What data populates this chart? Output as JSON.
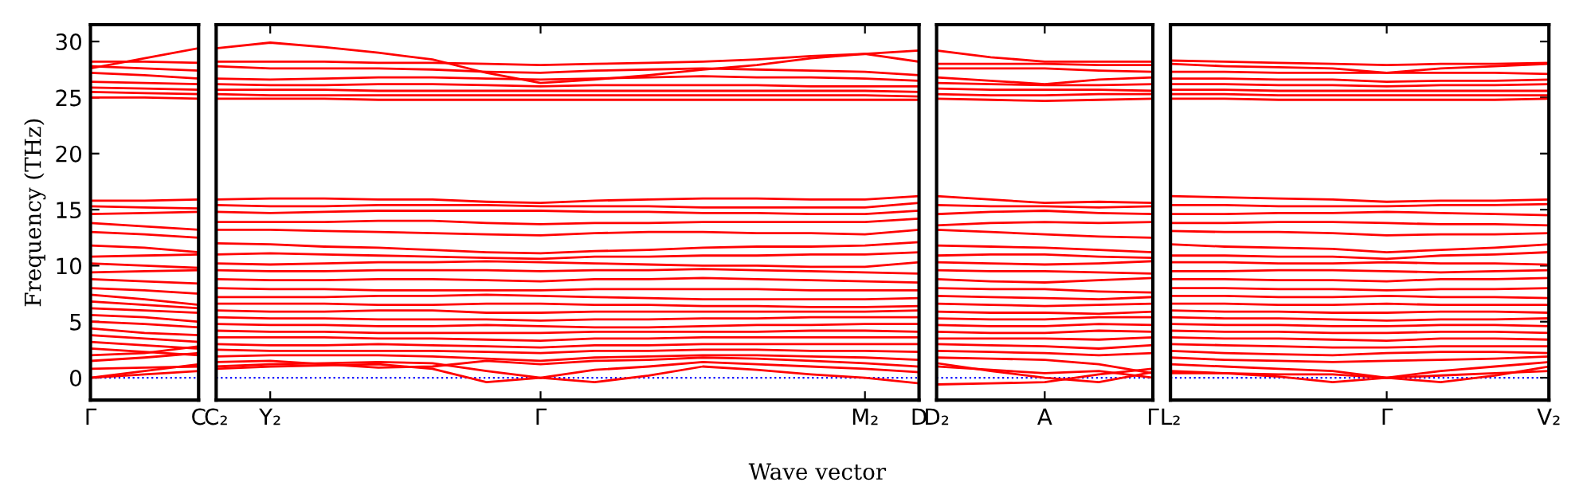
{
  "chart_data": [
    {
      "type": "line",
      "ylabel": "Frequency (THz)",
      "categories": [
        "Γ",
        null,
        "C"
      ],
      "ylim": [
        -2,
        31.5
      ],
      "yticks": [
        0,
        5,
        10,
        15,
        20,
        25,
        30
      ],
      "ref_lines": [
        {
          "axis": "y",
          "value": 0,
          "color": "#0000ff",
          "line_style": "dotted"
        }
      ],
      "series": [
        {
          "color": "#ff0000",
          "values": [
            27.6,
            28.5,
            29.4
          ]
        },
        {
          "color": "#ff0000",
          "values": [
            28.2,
            28.2,
            28.1
          ]
        },
        {
          "color": "#ff0000",
          "values": [
            27.8,
            27.6,
            27.4
          ]
        },
        {
          "color": "#ff0000",
          "values": [
            27.2,
            27.0,
            26.7
          ]
        },
        {
          "color": "#ff0000",
          "values": [
            26.4,
            26.3,
            26.2
          ]
        },
        {
          "color": "#ff0000",
          "values": [
            25.9,
            25.8,
            25.7
          ]
        },
        {
          "color": "#ff0000",
          "values": [
            25.5,
            25.4,
            25.3
          ]
        },
        {
          "color": "#ff0000",
          "values": [
            25.0,
            25.0,
            24.9
          ]
        },
        {
          "color": "#ff0000",
          "values": [
            15.8,
            15.8,
            15.9
          ]
        },
        {
          "color": "#ff0000",
          "values": [
            15.3,
            15.2,
            15.1
          ]
        },
        {
          "color": "#ff0000",
          "values": [
            14.6,
            14.7,
            14.8
          ]
        },
        {
          "color": "#ff0000",
          "values": [
            13.8,
            13.5,
            13.2
          ]
        },
        {
          "color": "#ff0000",
          "values": [
            13.0,
            12.8,
            12.5
          ]
        },
        {
          "color": "#ff0000",
          "values": [
            11.8,
            11.6,
            11.2
          ]
        },
        {
          "color": "#ff0000",
          "values": [
            10.8,
            10.9,
            11.0
          ]
        },
        {
          "color": "#ff0000",
          "values": [
            10.2,
            10.0,
            9.8
          ]
        },
        {
          "color": "#ff0000",
          "values": [
            9.4,
            9.5,
            9.6
          ]
        },
        {
          "color": "#ff0000",
          "values": [
            8.8,
            8.6,
            8.4
          ]
        },
        {
          "color": "#ff0000",
          "values": [
            8.0,
            7.8,
            7.5
          ]
        },
        {
          "color": "#ff0000",
          "values": [
            7.4,
            7.0,
            6.5
          ]
        },
        {
          "color": "#ff0000",
          "values": [
            6.8,
            6.5,
            6.2
          ]
        },
        {
          "color": "#ff0000",
          "values": [
            6.2,
            6.0,
            5.8
          ]
        },
        {
          "color": "#ff0000",
          "values": [
            5.6,
            5.4,
            5.0
          ]
        },
        {
          "color": "#ff0000",
          "values": [
            5.0,
            4.8,
            4.5
          ]
        },
        {
          "color": "#ff0000",
          "values": [
            4.4,
            4.0,
            3.8
          ]
        },
        {
          "color": "#ff0000",
          "values": [
            3.8,
            3.5,
            3.2
          ]
        },
        {
          "color": "#ff0000",
          "values": [
            3.2,
            2.9,
            2.6
          ]
        },
        {
          "color": "#ff0000",
          "values": [
            2.6,
            2.3,
            2.0
          ]
        },
        {
          "color": "#ff0000",
          "values": [
            2.0,
            2.2,
            2.8
          ]
        },
        {
          "color": "#ff0000",
          "values": [
            1.5,
            1.8,
            2.2
          ]
        },
        {
          "color": "#ff0000",
          "values": [
            0,
            0.6,
            1.2
          ]
        },
        {
          "color": "#ff0000",
          "values": [
            0,
            0.3,
            0.6
          ]
        },
        {
          "color": "#ff0000",
          "values": [
            0.8,
            0.9,
            1.0
          ]
        }
      ]
    },
    {
      "type": "line",
      "xlabel": "Wave vector",
      "tick_labels": "x",
      "categories": [
        "C₂",
        "Y₂",
        null,
        null,
        null,
        null,
        "Γ",
        null,
        null,
        null,
        null,
        null,
        "M₂",
        "D"
      ],
      "ylim": [
        -2,
        31.5
      ],
      "ref_lines": [
        {
          "axis": "y",
          "value": 0,
          "color": "#0000ff",
          "line_style": "dotted"
        }
      ],
      "series": [
        {
          "color": "#ff0000",
          "values": [
            29.4,
            29.9,
            29.5,
            29.0,
            28.4,
            27.2,
            26.3,
            26.6,
            27.0,
            27.5,
            27.9,
            28.5,
            28.9,
            29.2
          ]
        },
        {
          "color": "#ff0000",
          "values": [
            28.2,
            28.2,
            28.2,
            28.1,
            28.1,
            28.0,
            27.9,
            28.0,
            28.1,
            28.2,
            28.4,
            28.7,
            28.9,
            28.2
          ]
        },
        {
          "color": "#ff0000",
          "values": [
            27.8,
            27.6,
            27.6,
            27.6,
            27.5,
            27.3,
            27.2,
            27.4,
            27.5,
            27.6,
            27.5,
            27.4,
            27.3,
            27.0
          ]
        },
        {
          "color": "#ff0000",
          "values": [
            26.7,
            26.6,
            26.7,
            26.8,
            26.8,
            26.7,
            26.6,
            26.7,
            26.8,
            26.9,
            26.8,
            26.8,
            26.7,
            26.5
          ]
        },
        {
          "color": "#ff0000",
          "values": [
            26.2,
            26.1,
            26.1,
            26.2,
            26.2,
            26.1,
            26.0,
            26.1,
            26.1,
            26.1,
            26.1,
            26.0,
            26.0,
            26.0
          ]
        },
        {
          "color": "#ff0000",
          "values": [
            25.7,
            25.7,
            25.7,
            25.6,
            25.6,
            25.6,
            25.6,
            25.6,
            25.6,
            25.6,
            25.6,
            25.6,
            25.6,
            25.5
          ]
        },
        {
          "color": "#ff0000",
          "values": [
            25.3,
            25.2,
            25.2,
            25.2,
            25.2,
            25.2,
            25.2,
            25.2,
            25.2,
            25.2,
            25.2,
            25.2,
            25.2,
            25.1
          ]
        },
        {
          "color": "#ff0000",
          "values": [
            24.9,
            24.9,
            24.9,
            24.8,
            24.8,
            24.8,
            24.8,
            24.8,
            24.8,
            24.8,
            24.8,
            24.8,
            24.8,
            24.8
          ]
        },
        {
          "color": "#ff0000",
          "values": [
            15.9,
            16.0,
            16.0,
            15.9,
            15.9,
            15.7,
            15.6,
            15.8,
            15.9,
            16.0,
            16.0,
            15.9,
            15.9,
            16.2
          ]
        },
        {
          "color": "#ff0000",
          "values": [
            15.4,
            15.3,
            15.3,
            15.4,
            15.4,
            15.4,
            15.3,
            15.3,
            15.3,
            15.2,
            15.2,
            15.2,
            15.2,
            15.6
          ]
        },
        {
          "color": "#ff0000",
          "values": [
            14.8,
            14.7,
            14.8,
            14.9,
            14.9,
            14.9,
            14.9,
            14.8,
            14.8,
            14.7,
            14.7,
            14.6,
            14.6,
            14.9
          ]
        },
        {
          "color": "#ff0000",
          "values": [
            13.9,
            13.9,
            13.9,
            14.0,
            14.0,
            13.8,
            13.7,
            13.8,
            13.8,
            13.9,
            13.9,
            13.9,
            13.9,
            14.2
          ]
        },
        {
          "color": "#ff0000",
          "values": [
            13.2,
            13.2,
            13.1,
            13.0,
            12.9,
            12.8,
            12.7,
            12.9,
            13.0,
            13.0,
            12.9,
            12.9,
            12.8,
            13.2
          ]
        },
        {
          "color": "#ff0000",
          "values": [
            12.0,
            11.9,
            11.7,
            11.6,
            11.4,
            11.2,
            11.1,
            11.3,
            11.4,
            11.6,
            11.7,
            11.7,
            11.8,
            12.1
          ]
        },
        {
          "color": "#ff0000",
          "values": [
            11.0,
            11.1,
            11.0,
            10.9,
            10.8,
            10.7,
            10.6,
            10.8,
            10.8,
            10.9,
            10.9,
            11.0,
            11.0,
            11.2
          ]
        },
        {
          "color": "#ff0000",
          "values": [
            10.2,
            10.1,
            10.2,
            10.3,
            10.3,
            10.4,
            10.3,
            10.2,
            10.1,
            10.0,
            10.0,
            9.9,
            9.9,
            10.3
          ]
        },
        {
          "color": "#ff0000",
          "values": [
            9.6,
            9.5,
            9.5,
            9.6,
            9.6,
            9.6,
            9.5,
            9.6,
            9.6,
            9.7,
            9.6,
            9.5,
            9.4,
            9.3
          ]
        },
        {
          "color": "#ff0000",
          "values": [
            8.8,
            8.7,
            8.7,
            8.8,
            8.8,
            8.7,
            8.6,
            8.8,
            8.8,
            8.9,
            8.8,
            8.7,
            8.6,
            8.5
          ]
        },
        {
          "color": "#ff0000",
          "values": [
            8.0,
            7.9,
            7.9,
            7.8,
            7.8,
            7.8,
            7.8,
            7.9,
            7.9,
            7.9,
            7.9,
            7.8,
            7.8,
            7.8
          ]
        },
        {
          "color": "#ff0000",
          "values": [
            7.2,
            7.2,
            7.2,
            7.3,
            7.3,
            7.4,
            7.3,
            7.2,
            7.1,
            7.0,
            7.0,
            7.0,
            7.0,
            7.1
          ]
        },
        {
          "color": "#ff0000",
          "values": [
            6.6,
            6.6,
            6.6,
            6.5,
            6.5,
            6.6,
            6.6,
            6.5,
            6.5,
            6.4,
            6.4,
            6.3,
            6.3,
            6.4
          ]
        },
        {
          "color": "#ff0000",
          "values": [
            6.0,
            5.9,
            5.9,
            6.0,
            6.0,
            5.8,
            5.8,
            5.9,
            5.9,
            5.9,
            5.9,
            5.9,
            5.9,
            6.0
          ]
        },
        {
          "color": "#ff0000",
          "values": [
            5.4,
            5.3,
            5.3,
            5.2,
            5.2,
            5.2,
            5.1,
            5.2,
            5.2,
            5.3,
            5.3,
            5.4,
            5.4,
            5.4
          ]
        },
        {
          "color": "#ff0000",
          "values": [
            4.8,
            4.7,
            4.7,
            4.6,
            4.6,
            4.7,
            4.6,
            4.5,
            4.5,
            4.6,
            4.7,
            4.7,
            4.8,
            4.8
          ]
        },
        {
          "color": "#ff0000",
          "values": [
            4.2,
            4.1,
            4.1,
            4.0,
            4.0,
            4.0,
            4.0,
            4.1,
            4.1,
            4.1,
            4.1,
            4.2,
            4.2,
            4.1
          ]
        },
        {
          "color": "#ff0000",
          "values": [
            3.6,
            3.6,
            3.6,
            3.5,
            3.5,
            3.4,
            3.3,
            3.5,
            3.5,
            3.6,
            3.6,
            3.6,
            3.6,
            3.6
          ]
        },
        {
          "color": "#ff0000",
          "values": [
            3.0,
            2.9,
            2.9,
            3.0,
            2.9,
            2.8,
            2.7,
            2.9,
            2.9,
            3.0,
            3.0,
            3.0,
            3.0,
            3.0
          ]
        },
        {
          "color": "#ff0000",
          "values": [
            2.5,
            2.4,
            2.4,
            2.4,
            2.4,
            2.3,
            2.2,
            2.4,
            2.4,
            2.5,
            2.5,
            2.4,
            2.4,
            2.3
          ]
        },
        {
          "color": "#ff0000",
          "values": [
            1.9,
            2.0,
            2.0,
            2.0,
            1.9,
            1.7,
            1.5,
            1.8,
            1.9,
            2.0,
            2.0,
            1.9,
            1.8,
            1.6
          ]
        },
        {
          "color": "#ff0000",
          "values": [
            1.4,
            1.5,
            1.2,
            0.9,
            1.0,
            1.5,
            1.2,
            1.5,
            1.6,
            1.8,
            1.7,
            1.5,
            1.3,
            1.0
          ]
        },
        {
          "color": "#ff0000",
          "values": [
            1.0,
            1.2,
            1.3,
            1.4,
            1.3,
            0.6,
            0.0,
            0.7,
            1.0,
            1.4,
            1.2,
            1.0,
            0.8,
            0.5
          ]
        },
        {
          "color": "#ff0000",
          "values": [
            0.8,
            1.0,
            1.1,
            1.2,
            0.8,
            -0.4,
            0.0,
            -0.4,
            0.2,
            1.0,
            0.7,
            0.3,
            0.0,
            -0.5
          ]
        }
      ]
    },
    {
      "type": "line",
      "tick_labels": "x",
      "categories": [
        "D₂",
        null,
        "A",
        null,
        "Γ"
      ],
      "ylim": [
        -2,
        31.5
      ],
      "ref_lines": [
        {
          "axis": "y",
          "value": 0,
          "color": "#0000ff",
          "line_style": "dotted"
        }
      ],
      "series": [
        {
          "color": "#ff0000",
          "values": [
            29.2,
            28.6,
            28.2,
            28.2,
            28.2
          ]
        },
        {
          "color": "#ff0000",
          "values": [
            28.0,
            28.0,
            28.0,
            27.9,
            27.9
          ]
        },
        {
          "color": "#ff0000",
          "values": [
            27.6,
            27.6,
            27.6,
            27.4,
            27.3
          ]
        },
        {
          "color": "#ff0000",
          "values": [
            26.8,
            26.5,
            26.2,
            26.6,
            26.8
          ]
        },
        {
          "color": "#ff0000",
          "values": [
            26.3,
            26.2,
            26.1,
            26.1,
            26.2
          ]
        },
        {
          "color": "#ff0000",
          "values": [
            25.8,
            25.7,
            25.7,
            25.7,
            25.6
          ]
        },
        {
          "color": "#ff0000",
          "values": [
            25.3,
            25.2,
            25.2,
            25.3,
            25.3
          ]
        },
        {
          "color": "#ff0000",
          "values": [
            24.9,
            24.8,
            24.7,
            24.8,
            24.9
          ]
        },
        {
          "color": "#ff0000",
          "values": [
            16.2,
            15.9,
            15.6,
            15.7,
            15.6
          ]
        },
        {
          "color": "#ff0000",
          "values": [
            15.4,
            15.3,
            15.3,
            15.2,
            15.3
          ]
        },
        {
          "color": "#ff0000",
          "values": [
            14.6,
            14.8,
            14.9,
            14.7,
            14.6
          ]
        },
        {
          "color": "#ff0000",
          "values": [
            13.6,
            13.8,
            13.9,
            13.8,
            13.9
          ]
        },
        {
          "color": "#ff0000",
          "values": [
            13.2,
            13.0,
            12.8,
            12.6,
            12.5
          ]
        },
        {
          "color": "#ff0000",
          "values": [
            11.8,
            11.7,
            11.6,
            11.4,
            11.2
          ]
        },
        {
          "color": "#ff0000",
          "values": [
            10.9,
            11.0,
            11.0,
            10.8,
            10.7
          ]
        },
        {
          "color": "#ff0000",
          "values": [
            10.3,
            10.2,
            10.1,
            10.2,
            10.4
          ]
        },
        {
          "color": "#ff0000",
          "values": [
            9.6,
            9.5,
            9.5,
            9.4,
            9.3
          ]
        },
        {
          "color": "#ff0000",
          "values": [
            8.8,
            8.6,
            8.5,
            8.7,
            8.9
          ]
        },
        {
          "color": "#ff0000",
          "values": [
            8.0,
            7.9,
            7.9,
            7.7,
            7.6
          ]
        },
        {
          "color": "#ff0000",
          "values": [
            7.3,
            7.2,
            7.1,
            7.0,
            7.2
          ]
        },
        {
          "color": "#ff0000",
          "values": [
            6.6,
            6.5,
            6.4,
            6.5,
            6.6
          ]
        },
        {
          "color": "#ff0000",
          "values": [
            5.9,
            5.8,
            5.8,
            5.7,
            5.9
          ]
        },
        {
          "color": "#ff0000",
          "values": [
            5.3,
            5.2,
            5.2,
            5.4,
            5.4
          ]
        },
        {
          "color": "#ff0000",
          "values": [
            4.7,
            4.6,
            4.6,
            4.8,
            4.7
          ]
        },
        {
          "color": "#ff0000",
          "values": [
            4.1,
            4.0,
            4.0,
            4.2,
            4.1
          ]
        },
        {
          "color": "#ff0000",
          "values": [
            3.5,
            3.5,
            3.5,
            3.4,
            3.6
          ]
        },
        {
          "color": "#ff0000",
          "values": [
            3.0,
            2.9,
            2.8,
            2.6,
            2.9
          ]
        },
        {
          "color": "#ff0000",
          "values": [
            2.4,
            2.3,
            2.2,
            2.0,
            2.2
          ]
        },
        {
          "color": "#ff0000",
          "values": [
            1.8,
            1.7,
            1.6,
            1.2,
            0.4
          ]
        },
        {
          "color": "#ff0000",
          "values": [
            1.0,
            0.7,
            0.4,
            0.6,
            0.0
          ]
        },
        {
          "color": "#ff0000",
          "values": [
            -0.6,
            -0.5,
            -0.4,
            0.3,
            0.8
          ]
        },
        {
          "color": "#ff0000",
          "values": [
            1.3,
            0.6,
            0.0,
            -0.4,
            0.5
          ]
        }
      ]
    },
    {
      "type": "line",
      "tick_labels": "x",
      "categories": [
        "L₂",
        null,
        null,
        null,
        "Γ",
        null,
        null,
        "V₂"
      ],
      "ylim": [
        -2,
        31.5
      ],
      "ref_lines": [
        {
          "axis": "y",
          "value": 0,
          "color": "#0000ff",
          "line_style": "dotted"
        }
      ],
      "series": [
        {
          "color": "#ff0000",
          "values": [
            28.3,
            28.2,
            28.1,
            28.0,
            27.9,
            28.0,
            28.0,
            28.1
          ]
        },
        {
          "color": "#ff0000",
          "values": [
            28.0,
            27.8,
            27.7,
            27.6,
            27.2,
            27.6,
            27.8,
            28.0
          ]
        },
        {
          "color": "#ff0000",
          "values": [
            27.3,
            27.3,
            27.2,
            27.2,
            27.2,
            27.2,
            27.2,
            27.1
          ]
        },
        {
          "color": "#ff0000",
          "values": [
            26.7,
            26.7,
            26.6,
            26.6,
            26.4,
            26.5,
            26.5,
            26.6
          ]
        },
        {
          "color": "#ff0000",
          "values": [
            26.2,
            26.2,
            26.1,
            26.1,
            26.0,
            26.1,
            26.1,
            26.2
          ]
        },
        {
          "color": "#ff0000",
          "values": [
            25.7,
            25.7,
            25.6,
            25.6,
            25.6,
            25.6,
            25.6,
            25.6
          ]
        },
        {
          "color": "#ff0000",
          "values": [
            25.3,
            25.3,
            25.2,
            25.2,
            25.2,
            25.2,
            25.2,
            25.2
          ]
        },
        {
          "color": "#ff0000",
          "values": [
            24.9,
            24.9,
            24.8,
            24.8,
            24.8,
            24.8,
            24.8,
            24.9
          ]
        },
        {
          "color": "#ff0000",
          "values": [
            16.2,
            16.1,
            16.0,
            15.9,
            15.7,
            15.8,
            15.8,
            15.9
          ]
        },
        {
          "color": "#ff0000",
          "values": [
            15.4,
            15.4,
            15.3,
            15.3,
            15.3,
            15.4,
            15.4,
            15.5
          ]
        },
        {
          "color": "#ff0000",
          "values": [
            14.6,
            14.6,
            14.7,
            14.7,
            14.8,
            14.7,
            14.6,
            14.5
          ]
        },
        {
          "color": "#ff0000",
          "values": [
            13.8,
            13.8,
            13.9,
            13.9,
            13.8,
            13.7,
            13.7,
            13.6
          ]
        },
        {
          "color": "#ff0000",
          "values": [
            13.1,
            13.0,
            13.0,
            12.9,
            12.7,
            12.8,
            12.8,
            12.9
          ]
        },
        {
          "color": "#ff0000",
          "values": [
            11.9,
            11.7,
            11.6,
            11.5,
            11.2,
            11.4,
            11.6,
            11.9
          ]
        },
        {
          "color": "#ff0000",
          "values": [
            10.9,
            10.9,
            10.8,
            10.8,
            10.6,
            10.9,
            11.0,
            11.2
          ]
        },
        {
          "color": "#ff0000",
          "values": [
            10.3,
            10.3,
            10.2,
            10.2,
            10.3,
            10.2,
            10.2,
            10.1
          ]
        },
        {
          "color": "#ff0000",
          "values": [
            9.5,
            9.5,
            9.6,
            9.6,
            9.5,
            9.4,
            9.5,
            9.6
          ]
        },
        {
          "color": "#ff0000",
          "values": [
            8.8,
            8.8,
            8.7,
            8.7,
            8.6,
            8.8,
            8.8,
            8.9
          ]
        },
        {
          "color": "#ff0000",
          "values": [
            8.0,
            8.0,
            7.9,
            7.9,
            7.8,
            7.9,
            7.9,
            8.0
          ]
        },
        {
          "color": "#ff0000",
          "values": [
            7.3,
            7.3,
            7.2,
            7.2,
            7.3,
            7.2,
            7.2,
            7.1
          ]
        },
        {
          "color": "#ff0000",
          "values": [
            6.6,
            6.6,
            6.5,
            6.5,
            6.6,
            6.5,
            6.5,
            6.5
          ]
        },
        {
          "color": "#ff0000",
          "values": [
            6.0,
            5.9,
            5.9,
            5.8,
            5.8,
            5.9,
            5.9,
            5.8
          ]
        },
        {
          "color": "#ff0000",
          "values": [
            5.4,
            5.3,
            5.3,
            5.2,
            5.1,
            5.2,
            5.2,
            5.3
          ]
        },
        {
          "color": "#ff0000",
          "values": [
            4.8,
            4.7,
            4.7,
            4.6,
            4.6,
            4.7,
            4.7,
            4.6
          ]
        },
        {
          "color": "#ff0000",
          "values": [
            4.2,
            4.1,
            4.1,
            4.0,
            4.0,
            4.1,
            4.1,
            4.0
          ]
        },
        {
          "color": "#ff0000",
          "values": [
            3.6,
            3.5,
            3.5,
            3.4,
            3.3,
            3.5,
            3.5,
            3.4
          ]
        },
        {
          "color": "#ff0000",
          "values": [
            3.0,
            2.9,
            2.8,
            2.7,
            2.7,
            2.8,
            2.8,
            2.8
          ]
        },
        {
          "color": "#ff0000",
          "values": [
            2.4,
            2.2,
            2.1,
            2.0,
            2.2,
            2.3,
            2.3,
            2.2
          ]
        },
        {
          "color": "#ff0000",
          "values": [
            1.8,
            1.6,
            1.5,
            1.4,
            1.5,
            1.6,
            1.7,
            1.9
          ]
        },
        {
          "color": "#ff0000",
          "values": [
            1.2,
            1.0,
            0.8,
            0.6,
            0.0,
            0.6,
            1.0,
            1.4
          ]
        },
        {
          "color": "#ff0000",
          "values": [
            0.6,
            0.4,
            0.1,
            -0.4,
            0.0,
            -0.4,
            0.2,
            1.0
          ]
        },
        {
          "color": "#ff0000",
          "values": [
            0.4,
            0.4,
            0.3,
            0.3,
            0.0,
            0.2,
            0.4,
            0.6
          ]
        }
      ]
    }
  ]
}
